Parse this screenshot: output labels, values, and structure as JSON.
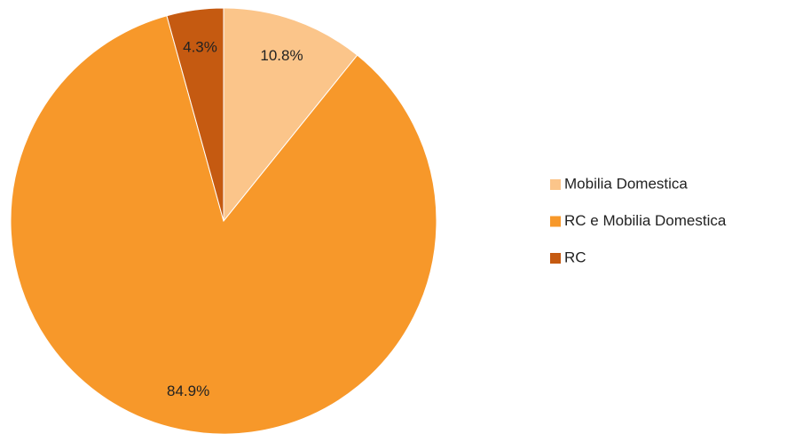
{
  "chart_data": {
    "type": "pie",
    "categories": [
      "Mobilia Domestica",
      "RC e Mobilia Domestica",
      "RC"
    ],
    "values": [
      10.8,
      84.9,
      4.3
    ],
    "value_labels": [
      "10.8%",
      "84.9%",
      "4.3%"
    ],
    "colors": [
      "#fbc58a",
      "#f7982a",
      "#c55a11"
    ],
    "legend": "right"
  }
}
